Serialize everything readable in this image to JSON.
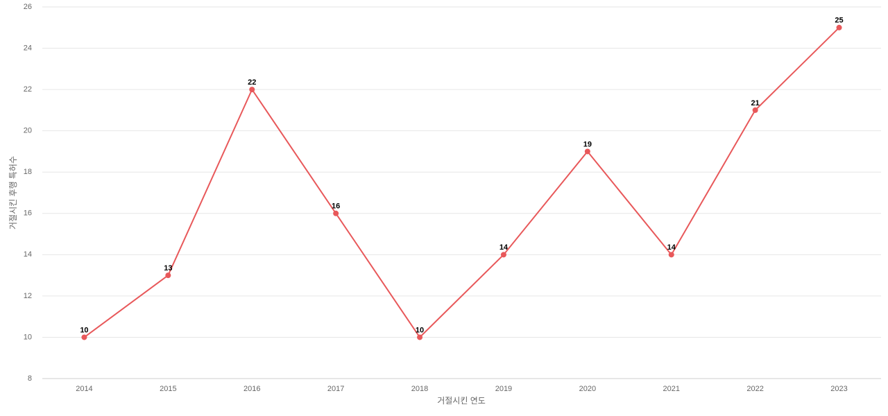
{
  "chart_data": {
    "type": "line",
    "x_label": "거절시킨 연도",
    "y_label": "거절시킨 후행 특허수",
    "categories": [
      "2014",
      "2015",
      "2016",
      "2017",
      "2018",
      "2019",
      "2020",
      "2021",
      "2022",
      "2023"
    ],
    "values": [
      10,
      13,
      22,
      16,
      10,
      14,
      19,
      14,
      21,
      25
    ],
    "color": "#e8585a",
    "ylim": [
      8,
      26
    ],
    "yticks": [
      8,
      10,
      12,
      14,
      16,
      18,
      20,
      22,
      24,
      26
    ],
    "grid": true,
    "data_labels": true
  }
}
